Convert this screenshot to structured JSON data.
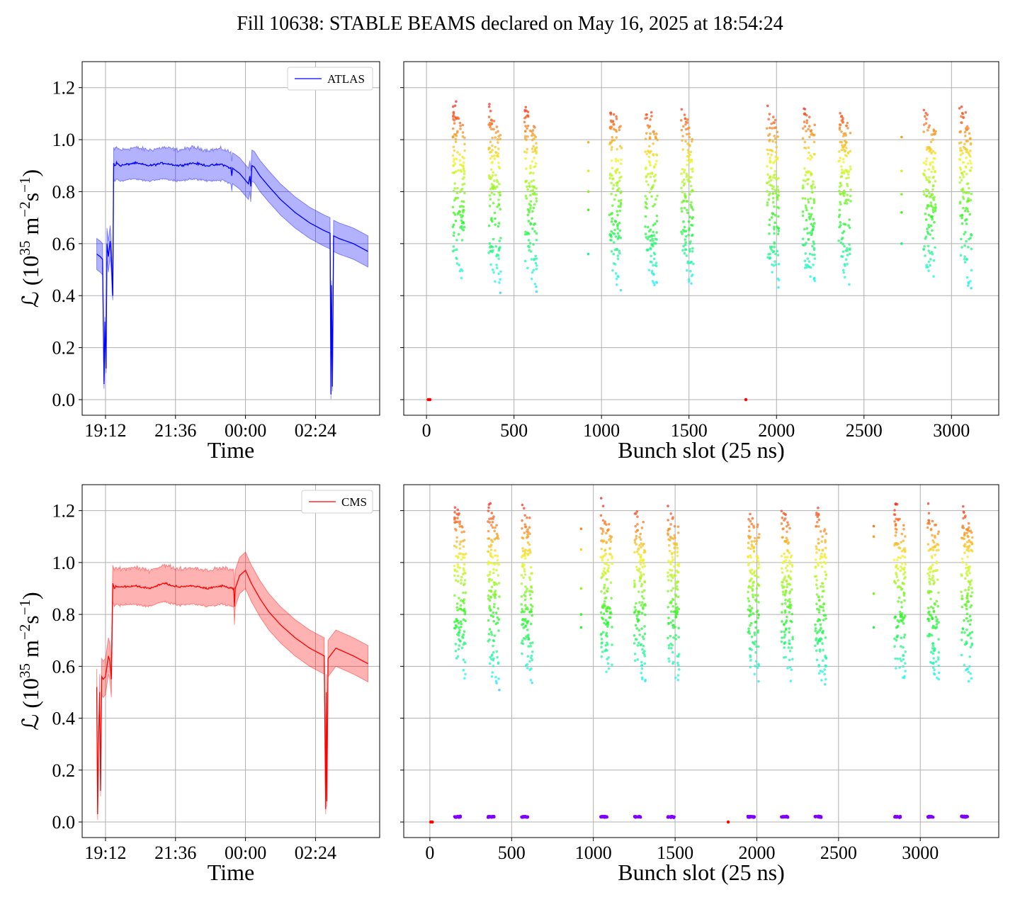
{
  "title": "Fill 10638: STABLE BEAMS declared on May 16, 2025 at 18:54:24",
  "colors": {
    "atlas": "#0000ff",
    "cms": "#ff0000",
    "grid": "#b0b0b0"
  },
  "chart_data": [
    {
      "id": "atlas-time",
      "type": "line",
      "legend": "ATLAS",
      "legend_position": "top-right",
      "color": "#0000ff",
      "xlabel": "Time",
      "ylabel_parts": [
        "ℒ (10",
        "35",
        " m",
        "−2",
        "s",
        "−1",
        ")"
      ],
      "x_ticks": [
        "19:12",
        "21:36",
        "00:00",
        "02:24"
      ],
      "x_ticks_hours": [
        0,
        2.4,
        4.8,
        7.2
      ],
      "x_range_hours": [
        -0.8,
        9.4
      ],
      "ylim": [
        -0.06,
        1.3
      ],
      "y_ticks": [
        "0.0",
        "0.2",
        "0.4",
        "0.6",
        "0.8",
        "1.0",
        "1.2"
      ],
      "grid": true,
      "x_hours": [
        -0.3,
        -0.18,
        -0.1,
        -0.05,
        -0.02,
        0.02,
        0.05,
        0.1,
        0.16,
        0.2,
        0.25,
        0.28,
        0.31,
        0.38,
        0.5,
        1,
        1.5,
        2,
        2.5,
        3,
        3.5,
        4,
        4.3,
        4.33,
        4.36,
        4.6,
        4.9,
        4.95,
        4.98,
        5.02,
        5.1,
        5.3,
        5.6,
        6,
        6.5,
        7,
        7.5,
        7.7,
        7.73,
        7.75,
        7.78,
        7.82,
        8,
        8.5,
        9.0
      ],
      "y": [
        0.56,
        0.55,
        0.54,
        0.06,
        0.3,
        0.12,
        0.6,
        0.55,
        0.61,
        0.55,
        0.4,
        0.91,
        0.9,
        0.91,
        0.9,
        0.91,
        0.9,
        0.91,
        0.9,
        0.91,
        0.9,
        0.905,
        0.89,
        0.86,
        0.89,
        0.87,
        0.83,
        0.86,
        0.82,
        0.9,
        0.895,
        0.86,
        0.82,
        0.77,
        0.72,
        0.68,
        0.65,
        0.64,
        0.02,
        0.44,
        0.05,
        0.63,
        0.62,
        0.6,
        0.57
      ],
      "band_halfwidth": 0.06
    },
    {
      "id": "atlas-bunch",
      "type": "scatter",
      "xlabel": "Bunch slot (25 ns)",
      "x_ticks": [
        0,
        500,
        1000,
        1500,
        2000,
        2500,
        3000
      ],
      "xlim": [
        -130,
        3270
      ],
      "ylim": [
        -0.06,
        1.3
      ],
      "grid": true,
      "colormap": "rainbow",
      "clusters_start_slot": [
        150,
        355,
        560,
        1045,
        1250,
        1455,
        1945,
        2150,
        2355,
        2840,
        3045
      ],
      "cluster_width_slots": 70,
      "value_range": [
        0.42,
        1.15
      ],
      "isolated_points": [
        [
          925,
          0.99
        ],
        [
          925,
          0.88
        ],
        [
          925,
          0.8
        ],
        [
          925,
          0.73
        ],
        [
          925,
          0.56
        ],
        [
          2715,
          1.01
        ],
        [
          2715,
          0.88
        ],
        [
          2715,
          0.79
        ],
        [
          2715,
          0.72
        ],
        [
          2715,
          0.6
        ]
      ],
      "zero_points": [
        [
          10,
          0.0
        ],
        [
          20,
          0.0
        ],
        [
          1825,
          0.0
        ]
      ]
    },
    {
      "id": "cms-time",
      "type": "line",
      "legend": "CMS",
      "legend_position": "top-right",
      "color": "#ff0000",
      "xlabel": "Time",
      "ylabel_parts": [
        "ℒ (10",
        "35",
        " m",
        "−2",
        "s",
        "−1",
        ")"
      ],
      "x_ticks": [
        "19:12",
        "21:36",
        "00:00",
        "02:24"
      ],
      "x_ticks_hours": [
        0,
        2.4,
        4.8,
        7.2
      ],
      "x_range_hours": [
        -0.8,
        9.4
      ],
      "ylim": [
        -0.06,
        1.3
      ],
      "y_ticks": [
        "0.0",
        "0.2",
        "0.4",
        "0.6",
        "0.8",
        "1.0",
        "1.2"
      ],
      "grid": true,
      "x_hours": [
        -0.3,
        -0.27,
        -0.24,
        -0.2,
        -0.17,
        -0.13,
        -0.08,
        0.0,
        0.05,
        0.1,
        0.15,
        0.2,
        0.25,
        0.3,
        0.35,
        0.5,
        1,
        1.5,
        2,
        2.5,
        3,
        3.5,
        4,
        4.4,
        4.42,
        4.45,
        4.6,
        4.8,
        5.0,
        5.3,
        5.6,
        6,
        6.5,
        7,
        7.5,
        7.55,
        7.57,
        7.59,
        7.63,
        7.9,
        8.5,
        9.0
      ],
      "y": [
        0.52,
        0.03,
        0.3,
        0.5,
        0.12,
        0.56,
        0.55,
        0.56,
        0.6,
        0.64,
        0.62,
        0.55,
        0.92,
        0.9,
        0.91,
        0.905,
        0.91,
        0.9,
        0.92,
        0.905,
        0.91,
        0.9,
        0.91,
        0.9,
        0.83,
        0.9,
        0.95,
        0.97,
        0.92,
        0.86,
        0.81,
        0.76,
        0.71,
        0.67,
        0.64,
        0.05,
        0.5,
        0.08,
        0.63,
        0.67,
        0.64,
        0.61
      ],
      "band_halfwidth": 0.07
    },
    {
      "id": "cms-bunch",
      "type": "scatter",
      "xlabel": "Bunch slot (25 ns)",
      "x_ticks": [
        0,
        500,
        1000,
        1500,
        2000,
        2500,
        3000
      ],
      "xlim": [
        -160,
        3480
      ],
      "ylim": [
        -0.06,
        1.3
      ],
      "grid": true,
      "colormap": "rainbow",
      "clusters_start_slot": [
        150,
        355,
        560,
        1045,
        1250,
        1455,
        1945,
        2150,
        2355,
        2840,
        3045,
        3250
      ],
      "cluster_width_slots": 70,
      "value_range": [
        0.52,
        1.24
      ],
      "isolated_points": [
        [
          925,
          1.13
        ],
        [
          925,
          1.05
        ],
        [
          925,
          0.9
        ],
        [
          925,
          0.8
        ],
        [
          925,
          0.75
        ],
        [
          2715,
          1.14
        ],
        [
          2715,
          1.1
        ],
        [
          2715,
          0.88
        ],
        [
          2715,
          0.75
        ]
      ],
      "zero_points": [
        [
          5,
          0.0
        ],
        [
          15,
          0.0
        ],
        [
          1825,
          0.0
        ]
      ],
      "baseline_value": 0.02
    }
  ]
}
